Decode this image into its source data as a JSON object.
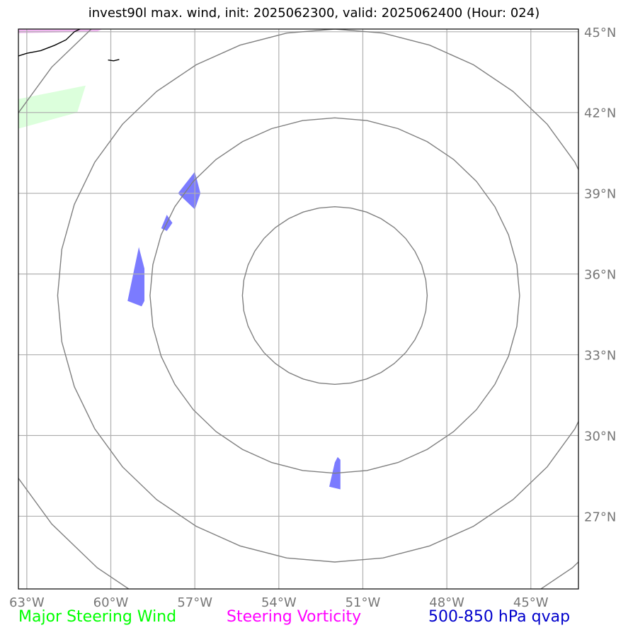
{
  "title": "invest90l max. wind, init: 2025062300, valid: 2025062400 (Hour: 024)",
  "map": {
    "lon_range": [
      -63.3,
      -43.3
    ],
    "lat_range": [
      24.3,
      45.1
    ],
    "lon_ticks": [
      {
        "value": -63,
        "label": "63°W"
      },
      {
        "value": -60,
        "label": "60°W"
      },
      {
        "value": -57,
        "label": "57°W"
      },
      {
        "value": -54,
        "label": "54°W"
      },
      {
        "value": -51,
        "label": "51°W"
      },
      {
        "value": -48,
        "label": "48°W"
      },
      {
        "value": -45,
        "label": "45°W"
      }
    ],
    "lat_ticks": [
      {
        "value": 45,
        "label": "45°N"
      },
      {
        "value": 42,
        "label": "42°N"
      },
      {
        "value": 39,
        "label": "39°N"
      },
      {
        "value": 36,
        "label": "36°N"
      },
      {
        "value": 33,
        "label": "33°N"
      },
      {
        "value": 30,
        "label": "30°N"
      },
      {
        "value": 27,
        "label": "27°N"
      }
    ],
    "gridlines": true,
    "wind_contour_center": {
      "lon": -52.0,
      "lat": 35.2
    },
    "wind_contour_radii_deg": [
      3.3,
      6.6,
      9.9,
      13.2
    ],
    "qvap_color": "#7b7bff",
    "vorticity_color": "#f0b8f0",
    "steering_wind_color": "#dcffdc",
    "contour_color": "#808080",
    "qvap_polygons": [
      [
        [
          -57.6,
          39.0
        ],
        [
          -57.0,
          39.8
        ],
        [
          -56.8,
          39.0
        ],
        [
          -57.0,
          38.4
        ]
      ],
      [
        [
          -58.0,
          38.2
        ],
        [
          -58.2,
          37.7
        ],
        [
          -58.0,
          37.6
        ],
        [
          -57.8,
          37.9
        ]
      ],
      [
        [
          -59.0,
          37.0
        ],
        [
          -59.4,
          35.0
        ],
        [
          -58.9,
          34.8
        ],
        [
          -58.8,
          35.0
        ],
        [
          -58.8,
          36.2
        ]
      ],
      [
        [
          -52.2,
          28.1
        ],
        [
          -51.8,
          28.0
        ],
        [
          -51.8,
          29.1
        ],
        [
          -51.9,
          29.2
        ],
        [
          -52.0,
          29.0
        ]
      ]
    ],
    "steering_wind_polygons": [
      [
        [
          -63.3,
          42.5
        ],
        [
          -60.9,
          43.0
        ],
        [
          -61.2,
          42.0
        ],
        [
          -63.3,
          41.4
        ]
      ]
    ],
    "vorticity_polygons": [
      [
        [
          -63.3,
          45.1
        ],
        [
          -60.3,
          45.1
        ],
        [
          -60.5,
          45.0
        ],
        [
          -63.3,
          44.95
        ]
      ]
    ],
    "coastlines": [
      [
        [
          -63.3,
          44.1
        ],
        [
          -63.0,
          44.2
        ],
        [
          -62.5,
          44.3
        ],
        [
          -62.0,
          44.5
        ],
        [
          -61.6,
          44.7
        ],
        [
          -61.3,
          45.0
        ],
        [
          -61.1,
          45.1
        ]
      ],
      [
        [
          -60.1,
          43.95
        ],
        [
          -59.9,
          43.92
        ],
        [
          -59.7,
          43.97
        ]
      ]
    ]
  },
  "legend": {
    "major_steering_wind": {
      "label": "Major Steering Wind",
      "color": "#00ff00"
    },
    "steering_vorticity": {
      "label": "Steering Vorticity",
      "color": "#ff00ff"
    },
    "qvap": {
      "label": "500-850 hPa qvap",
      "color": "#0000cc"
    }
  }
}
